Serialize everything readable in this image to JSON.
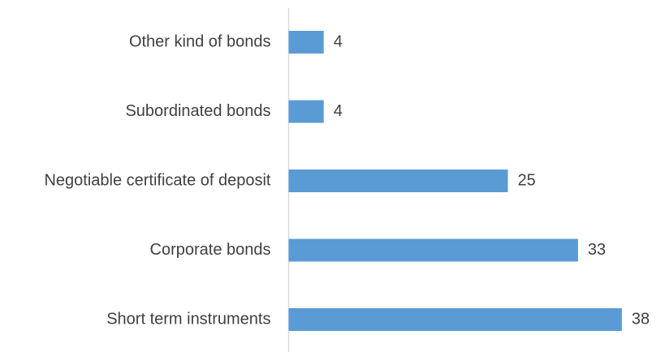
{
  "chart_data": {
    "type": "bar",
    "orientation": "horizontal",
    "categories": [
      "Other kind of bonds",
      "Subordinated bonds",
      "Negotiable certificate of deposit",
      "Corporate bonds",
      "Short term instruments"
    ],
    "values": [
      4,
      4,
      25,
      33,
      38
    ],
    "title": "",
    "xlabel": "",
    "ylabel": "",
    "xlim": [
      0,
      40
    ],
    "grid": false,
    "legend": "none",
    "data_labels": true,
    "colors": {
      "bar": "#5B9BD5",
      "axis": "#D9D9D9",
      "text": "#404040"
    }
  }
}
